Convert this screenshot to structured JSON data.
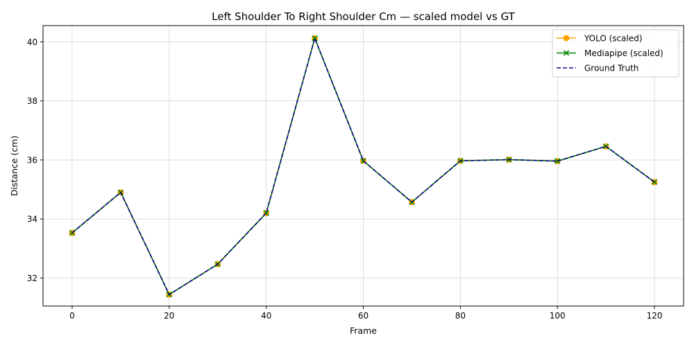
{
  "chart_data": {
    "type": "line",
    "title": "Left Shoulder To Right Shoulder Cm — scaled model vs GT",
    "xlabel": "Frame",
    "ylabel": "Distance (cm)",
    "x": [
      0,
      10,
      20,
      30,
      40,
      50,
      60,
      70,
      80,
      90,
      100,
      110,
      120
    ],
    "xlim": [
      -6,
      126
    ],
    "ylim": [
      31.05,
      40.55
    ],
    "xticks": [
      0,
      20,
      40,
      60,
      80,
      100,
      120
    ],
    "yticks": [
      32,
      34,
      36,
      38,
      40
    ],
    "grid": true,
    "legend_position": "top-right",
    "series": [
      {
        "name": "YOLO (scaled)",
        "color": "#ffa500",
        "style": "solid",
        "marker": "circle",
        "values": [
          33.53,
          34.9,
          31.44,
          32.47,
          34.2,
          40.12,
          35.97,
          34.57,
          35.97,
          36.01,
          35.96,
          36.46,
          35.25
        ]
      },
      {
        "name": "Mediapipe (scaled)",
        "color": "#008000",
        "style": "solid",
        "marker": "x",
        "values": [
          33.53,
          34.9,
          31.44,
          32.47,
          34.2,
          40.12,
          35.97,
          34.57,
          35.97,
          36.01,
          35.96,
          36.46,
          35.25
        ]
      },
      {
        "name": "Ground Truth",
        "color": "#00008b",
        "style": "dashed",
        "marker": "none",
        "values": [
          33.53,
          34.9,
          31.44,
          32.47,
          34.2,
          40.12,
          35.97,
          34.57,
          35.97,
          36.01,
          35.96,
          36.46,
          35.25
        ]
      }
    ]
  }
}
